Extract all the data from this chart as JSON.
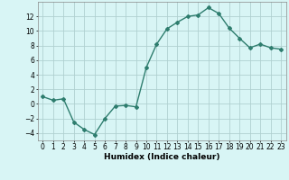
{
  "x": [
    0,
    1,
    2,
    3,
    4,
    5,
    6,
    7,
    8,
    9,
    10,
    11,
    12,
    13,
    14,
    15,
    16,
    17,
    18,
    19,
    20,
    21,
    22,
    23
  ],
  "y": [
    1,
    0.5,
    0.7,
    -2.5,
    -3.5,
    -4.2,
    -2.0,
    -0.3,
    -0.2,
    -0.4,
    5.0,
    8.2,
    10.3,
    11.2,
    12.0,
    12.2,
    13.2,
    12.4,
    10.4,
    9.0,
    7.7,
    8.2,
    7.7,
    7.5
  ],
  "line_color": "#2e7d6e",
  "marker": "D",
  "marker_size": 2,
  "linewidth": 1.0,
  "background_color": "#d8f5f5",
  "grid_color": "#b0d0d0",
  "xlabel": "Humidex (Indice chaleur)",
  "xlabel_fontsize": 6.5,
  "tick_fontsize": 5.5,
  "ylim": [
    -5,
    14
  ],
  "yticks": [
    -4,
    -2,
    0,
    2,
    4,
    6,
    8,
    10,
    12
  ],
  "xticks": [
    0,
    1,
    2,
    3,
    4,
    5,
    6,
    7,
    8,
    9,
    10,
    11,
    12,
    13,
    14,
    15,
    16,
    17,
    18,
    19,
    20,
    21,
    22,
    23
  ],
  "xlim": [
    -0.5,
    23.5
  ]
}
